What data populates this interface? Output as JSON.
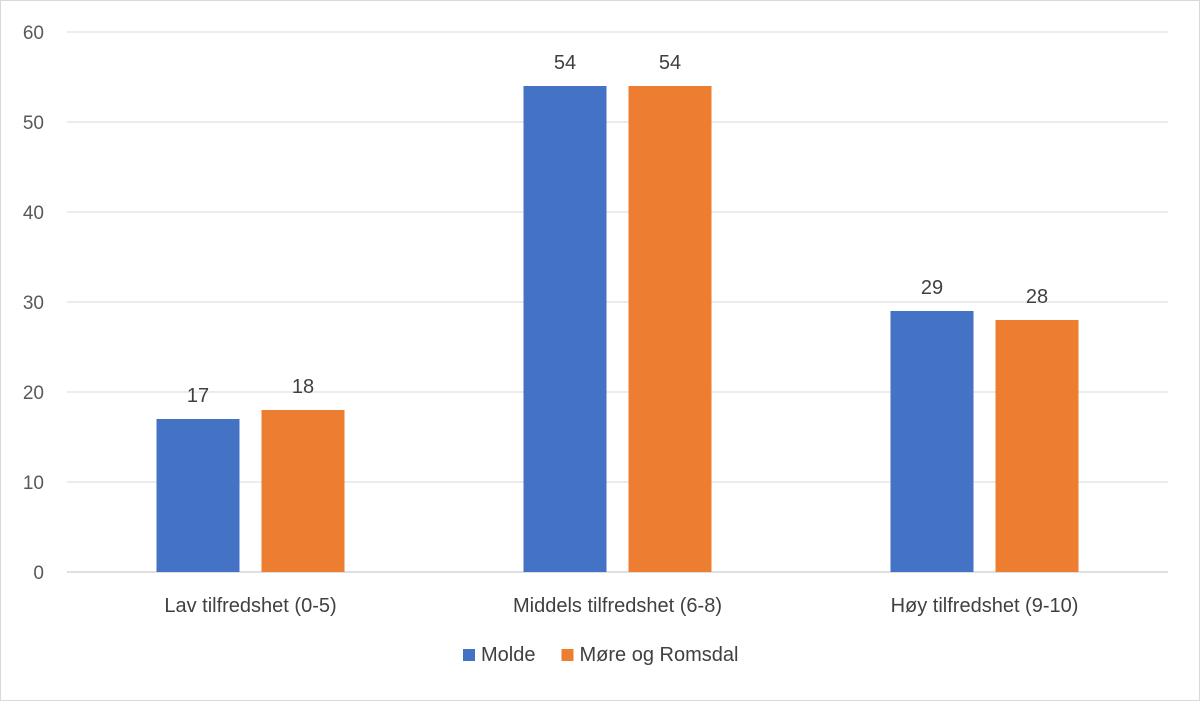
{
  "chart_data": {
    "type": "bar",
    "title": "",
    "xlabel": "",
    "ylabel": "",
    "ylim": [
      0,
      60
    ],
    "yticks": [
      0,
      10,
      20,
      30,
      40,
      50,
      60
    ],
    "grid": true,
    "legend_position": "bottom",
    "categories": [
      "Lav tilfredshet (0-5)",
      "Middels tilfredshet (6-8)",
      "Høy tilfredshet (9-10)"
    ],
    "series": [
      {
        "name": "Molde",
        "color": "#4472c4",
        "values": [
          17,
          54,
          29
        ]
      },
      {
        "name": "Møre og Romsdal",
        "color": "#ed7d31",
        "values": [
          18,
          54,
          28
        ]
      }
    ],
    "data_labels": true
  }
}
